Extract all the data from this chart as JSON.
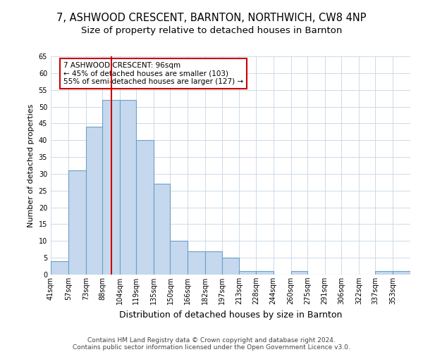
{
  "title1": "7, ASHWOOD CRESCENT, BARNTON, NORTHWICH, CW8 4NP",
  "title2": "Size of property relative to detached houses in Barnton",
  "xlabel": "Distribution of detached houses by size in Barnton",
  "ylabel": "Number of detached properties",
  "categories": [
    "41sqm",
    "57sqm",
    "73sqm",
    "88sqm",
    "104sqm",
    "119sqm",
    "135sqm",
    "150sqm",
    "166sqm",
    "182sqm",
    "197sqm",
    "213sqm",
    "228sqm",
    "244sqm",
    "260sqm",
    "275sqm",
    "291sqm",
    "306sqm",
    "322sqm",
    "337sqm",
    "353sqm"
  ],
  "values": [
    4,
    31,
    44,
    52,
    52,
    40,
    27,
    10,
    7,
    7,
    5,
    1,
    1,
    0,
    1,
    0,
    0,
    0,
    0,
    1,
    1
  ],
  "bar_color": "#C5D8EE",
  "bar_edge_color": "#6CA0C8",
  "bin_edges": [
    41,
    57,
    73,
    88,
    104,
    119,
    135,
    150,
    166,
    182,
    197,
    213,
    228,
    244,
    260,
    275,
    291,
    306,
    322,
    337,
    353,
    369
  ],
  "red_line_x": 96,
  "red_line_color": "#CC0000",
  "annotation_text": "7 ASHWOOD CRESCENT: 96sqm\n← 45% of detached houses are smaller (103)\n55% of semi-detached houses are larger (127) →",
  "annotation_edge_color": "#CC0000",
  "ylim": [
    0,
    65
  ],
  "yticks": [
    0,
    5,
    10,
    15,
    20,
    25,
    30,
    35,
    40,
    45,
    50,
    55,
    60,
    65
  ],
  "footer1": "Contains HM Land Registry data © Crown copyright and database right 2024.",
  "footer2": "Contains public sector information licensed under the Open Government Licence v3.0.",
  "bg_color": "#FFFFFF",
  "grid_color": "#C5D5E5",
  "title1_fontsize": 10.5,
  "title2_fontsize": 9.5,
  "ylabel_fontsize": 8,
  "xlabel_fontsize": 9,
  "tick_fontsize": 7,
  "annotation_fontsize": 7.5,
  "footer_fontsize": 6.5
}
